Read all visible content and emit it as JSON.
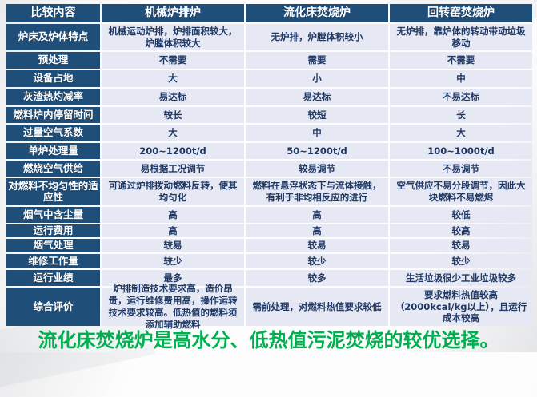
{
  "page": {
    "conclusion": "流化床焚烧炉是高水分、低热值污泥焚烧的较优选择。",
    "colors": {
      "header_bg": "#1F4E79",
      "cell_bg": "#E6E9F4",
      "cell_text": "#1F3864",
      "header_text": "#FFFFFF",
      "conclusion_text": "#00B050"
    }
  },
  "table": {
    "header": [
      "比较内容",
      "机械炉排炉",
      "流化床焚烧炉",
      "回转窑焚烧炉"
    ],
    "rows": [
      {
        "label": "炉床及炉体特点",
        "cells": [
          "机械运动炉排，炉排面积较大，炉膛体积较大",
          "无炉排，炉膛体积较小",
          "无炉排，靠炉体的转动带动垃圾移动"
        ]
      },
      {
        "label": "预处理",
        "cells": [
          "不需要",
          "需要",
          "不需要"
        ]
      },
      {
        "label": "设备占地",
        "cells": [
          "大",
          "小",
          "中"
        ]
      },
      {
        "label": "灰渣热灼减率",
        "cells": [
          "易达标",
          "易达标",
          "不易达标"
        ]
      },
      {
        "label": "燃料炉内停留时间",
        "cells": [
          "较长",
          "较短",
          "长"
        ]
      },
      {
        "label": "过量空气系数",
        "cells": [
          "大",
          "中",
          "大"
        ]
      },
      {
        "label": "单炉处理量",
        "cells": [
          "200~1200t/d",
          "50~1200t/d",
          "100~1000t/d"
        ]
      },
      {
        "label": "燃烧空气供给",
        "cells": [
          "易根据工况调节",
          "较易调节",
          "不易调节"
        ]
      },
      {
        "label": "对燃料不均匀性的适应性",
        "cells": [
          "可通过炉排拨动燃料反转，使其均匀化",
          "燃料在悬浮状态下与流体接触，有利于非均相反应的进行",
          "空气供应不易分段调节，因此大块燃料不易燃烬"
        ]
      },
      {
        "label": "烟气中含尘量",
        "cells": [
          "高",
          "高",
          "较低"
        ]
      },
      {
        "label": "运行费用",
        "cells": [
          "高",
          "高",
          "较高"
        ]
      },
      {
        "label": "烟气处理",
        "cells": [
          "较易",
          "较易",
          "较易"
        ]
      },
      {
        "label": "维修工作量",
        "cells": [
          "较少",
          "较少",
          "较少"
        ]
      },
      {
        "label": "运行业绩",
        "cells": [
          "最多",
          "较多",
          "生活垃圾很少工业垃圾较多"
        ]
      },
      {
        "label": "综合评价",
        "cells": [
          "炉排制造技术要求高，造价昂贵，运行维修费用高，操作运转技术要求较高。低热值的燃料须添加辅助燃料",
          "需前处理，对燃料热值要求较低",
          "要求燃料热值较高（2000kcal/kg以上），且运行成本较高"
        ]
      }
    ]
  }
}
